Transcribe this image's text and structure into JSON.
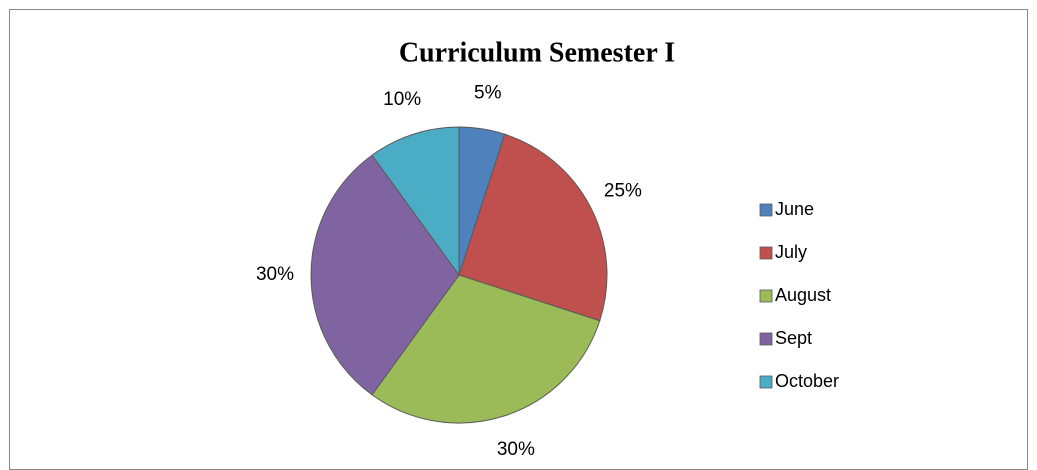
{
  "chart_data": {
    "type": "pie",
    "title": "Curriculum Semester I",
    "categories": [
      "June",
      "July",
      "August",
      "Sept",
      "October"
    ],
    "values": [
      5,
      25,
      30,
      30,
      10
    ],
    "value_labels": [
      "5%",
      "25%",
      "30%",
      "30%",
      "10%"
    ],
    "colors": [
      "#4f81bd",
      "#c0504d",
      "#9bbb59",
      "#8064a2",
      "#4bacc6"
    ],
    "legend": "right"
  }
}
